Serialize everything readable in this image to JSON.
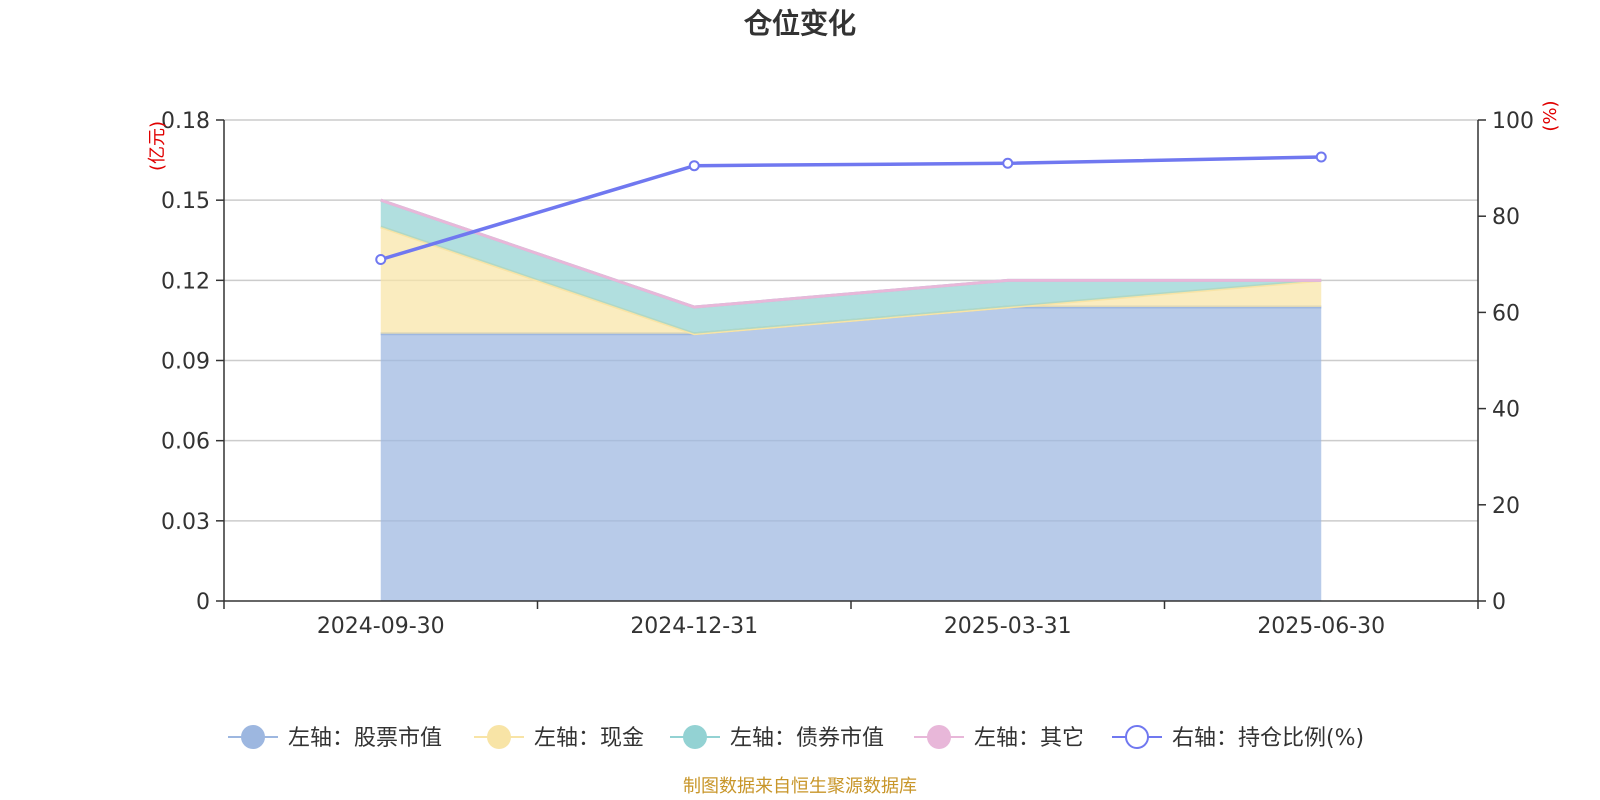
{
  "chart_data": {
    "type": "area",
    "title": "仓位变化",
    "categories": [
      "2024-09-30",
      "2024-12-31",
      "2025-03-31",
      "2025-06-30"
    ],
    "left_axis": {
      "unit_label": "(亿元)",
      "ylim": [
        0,
        0.18
      ],
      "ticks": [
        "0",
        "0.03",
        "0.06",
        "0.09",
        "0.12",
        "0.15",
        "0.18"
      ]
    },
    "right_axis": {
      "unit_label": "(%)",
      "ylim": [
        0,
        100
      ],
      "ticks": [
        "0",
        "20",
        "40",
        "60",
        "80",
        "100"
      ]
    },
    "grid": true,
    "legend_placement": "bottom-center",
    "series": [
      {
        "name": "左轴：股票市值",
        "axis": "left",
        "kind": "stacked-area",
        "color": "#9db7e0",
        "values": [
          0.1,
          0.1,
          0.11,
          0.11
        ]
      },
      {
        "name": "左轴：现金",
        "axis": "left",
        "kind": "stacked-area",
        "color": "#f8e4a6",
        "values": [
          0.04,
          0.0,
          0.0,
          0.01
        ]
      },
      {
        "name": "左轴：债券市值",
        "axis": "left",
        "kind": "stacked-area",
        "color": "#93d2d3",
        "values": [
          0.01,
          0.01,
          0.01,
          0.0
        ]
      },
      {
        "name": "左轴：其它",
        "axis": "left",
        "kind": "stacked-area",
        "color": "#e8b7d9",
        "values": [
          0.0,
          0.0,
          0.0,
          0.0
        ]
      },
      {
        "name": "右轴：持仓比例(%)",
        "axis": "right",
        "kind": "line",
        "color": "#7078f0",
        "values": [
          71,
          90.5,
          91,
          92.3
        ]
      }
    ]
  },
  "source_note": "制图数据来自恒生聚源数据库"
}
